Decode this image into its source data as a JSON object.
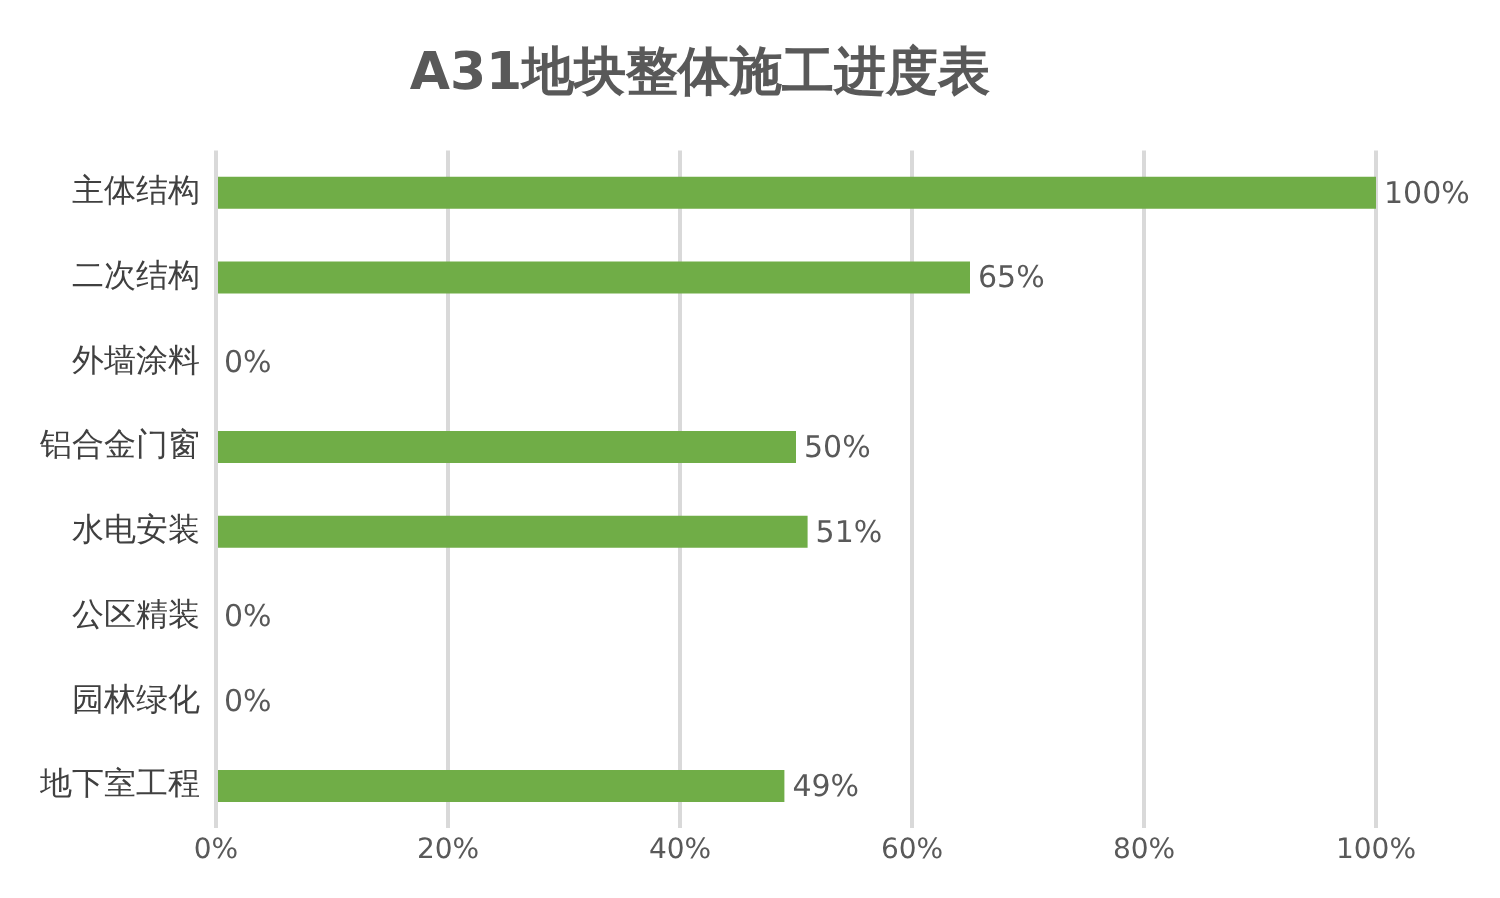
{
  "chart_data": {
    "type": "bar",
    "orientation": "horizontal",
    "title": "A31地块整体施工进度表",
    "categories": [
      "主体结构",
      "二次结构",
      "外墙涂料",
      "铝合金门窗",
      "水电安装",
      "公区精装",
      "园林绿化",
      "地下室工程"
    ],
    "values": [
      100,
      65,
      0,
      50,
      51,
      0,
      0,
      49
    ],
    "value_labels": [
      "100%",
      "65%",
      "0%",
      "50%",
      "51%",
      "0%",
      "0%",
      "49%"
    ],
    "color": "#70ad47",
    "xlim": [
      0,
      100
    ],
    "xticks": [
      {
        "value": 0,
        "label": "0%"
      },
      {
        "value": 20,
        "label": "20%"
      },
      {
        "value": 40,
        "label": "40%"
      },
      {
        "value": 60,
        "label": "60%"
      },
      {
        "value": 80,
        "label": "80%"
      },
      {
        "value": 100,
        "label": "100%"
      }
    ],
    "grid": "x",
    "legend": false
  }
}
